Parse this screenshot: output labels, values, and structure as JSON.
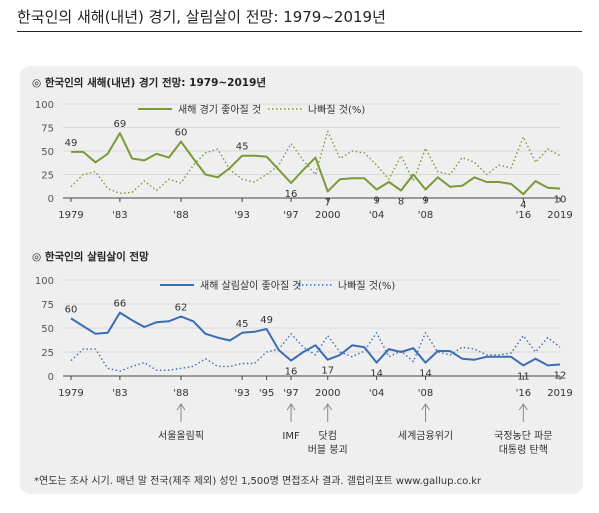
{
  "page_title": "한국인의 새해(내년) 경기, 살림살이 전망: 1979~2019년",
  "footnote": "*연도는 조사 시기. 매년 말 전국(제주 제외) 성인 1,500명 면접조사 결과. 갤럽리포트 www.gallup.co.kr",
  "colors": {
    "good_econ": "#7a9a3a",
    "bad_econ": "#7a9a3a",
    "good_life": "#3b6db5",
    "bad_life": "#3b6db5",
    "panel_bg": "#efefef"
  },
  "chart_data": [
    {
      "type": "line",
      "title": "◎  한국인의 새해(내년) 경기 전망: 1979~2019년",
      "ylim": [
        0,
        100
      ],
      "yticks": [
        "0",
        "25",
        "50",
        "75",
        "100"
      ],
      "xlim": [
        1979,
        2019
      ],
      "xticks": [
        {
          "year": 1979,
          "label": "1979"
        },
        {
          "year": 1983,
          "label": "'83"
        },
        {
          "year": 1988,
          "label": "'88"
        },
        {
          "year": 1993,
          "label": "'93"
        },
        {
          "year": 1997,
          "label": "'97"
        },
        {
          "year": 2000,
          "label": "2000"
        },
        {
          "year": 2004,
          "label": "'04"
        },
        {
          "year": 2008,
          "label": "'08"
        },
        {
          "year": 2016,
          "label": "'16"
        },
        {
          "year": 2019,
          "label": "2019"
        }
      ],
      "series": [
        {
          "name": "새해 경기 좋아질 것",
          "style": "solid",
          "x": [
            1979,
            1980,
            1981,
            1982,
            1983,
            1984,
            1985,
            1986,
            1987,
            1988,
            1989,
            1990,
            1991,
            1992,
            1993,
            1994,
            1995,
            1996,
            1997,
            1998,
            1999,
            2000,
            2001,
            2002,
            2003,
            2004,
            2005,
            2006,
            2007,
            2008,
            2009,
            2010,
            2011,
            2012,
            2013,
            2014,
            2015,
            2016,
            2017,
            2018,
            2019
          ],
          "y": [
            49,
            49,
            38,
            47,
            69,
            42,
            40,
            47,
            43,
            60,
            42,
            25,
            22,
            32,
            45,
            45,
            44,
            30,
            16,
            30,
            43,
            7,
            20,
            21,
            21,
            9,
            17,
            8,
            25,
            9,
            22,
            12,
            13,
            22,
            17,
            17,
            15,
            4,
            18,
            11,
            10
          ]
        },
        {
          "name": "나빠질 것(%)",
          "style": "dotted",
          "x": [
            1979,
            1980,
            1981,
            1982,
            1983,
            1984,
            1985,
            1986,
            1987,
            1988,
            1989,
            1990,
            1991,
            1992,
            1993,
            1994,
            1995,
            1996,
            1997,
            1998,
            1999,
            2000,
            2001,
            2002,
            2003,
            2004,
            2005,
            2006,
            2007,
            2008,
            2009,
            2010,
            2011,
            2012,
            2013,
            2014,
            2015,
            2016,
            2017,
            2018,
            2019
          ],
          "y": [
            12,
            25,
            28,
            10,
            5,
            6,
            18,
            8,
            20,
            16,
            35,
            48,
            52,
            30,
            20,
            17,
            25,
            35,
            58,
            40,
            25,
            71,
            42,
            50,
            48,
            35,
            20,
            45,
            18,
            53,
            28,
            25,
            43,
            38,
            25,
            35,
            32,
            65,
            38,
            52,
            45
          ]
        }
      ],
      "data_labels": [
        {
          "x": 1979,
          "y": 49,
          "text": "49"
        },
        {
          "x": 1983,
          "y": 69,
          "text": "69"
        },
        {
          "x": 1988,
          "y": 60,
          "text": "60"
        },
        {
          "x": 1993,
          "y": 45,
          "text": "45"
        },
        {
          "x": 1997,
          "y": 16,
          "text": "16"
        },
        {
          "x": 2000,
          "y": 7,
          "text": "7"
        },
        {
          "x": 2004,
          "y": 9,
          "text": "9"
        },
        {
          "x": 2006,
          "y": 8,
          "text": "8"
        },
        {
          "x": 2008,
          "y": 9,
          "text": "9"
        },
        {
          "x": 2016,
          "y": 4,
          "text": "4"
        },
        {
          "x": 2019,
          "y": 10,
          "text": "10"
        }
      ],
      "legend": "top"
    },
    {
      "type": "line",
      "title": "◎  한국인의 살림살이 전망",
      "ylim": [
        0,
        100
      ],
      "yticks": [
        "0",
        "25",
        "50",
        "75",
        "100"
      ],
      "xlim": [
        1979,
        2019
      ],
      "xticks": [
        {
          "year": 1979,
          "label": "1979"
        },
        {
          "year": 1983,
          "label": "'83"
        },
        {
          "year": 1988,
          "label": "'88"
        },
        {
          "year": 1993,
          "label": "'93"
        },
        {
          "year": 1995,
          "label": "'95"
        },
        {
          "year": 1997,
          "label": "'97"
        },
        {
          "year": 2000,
          "label": "2000"
        },
        {
          "year": 2004,
          "label": "'04"
        },
        {
          "year": 2008,
          "label": "'08"
        },
        {
          "year": 2016,
          "label": "'16"
        },
        {
          "year": 2019,
          "label": "2019"
        }
      ],
      "series": [
        {
          "name": "새해 살림살이 좋아질 것",
          "style": "solid",
          "x": [
            1979,
            1980,
            1981,
            1982,
            1983,
            1984,
            1985,
            1986,
            1987,
            1988,
            1989,
            1990,
            1991,
            1992,
            1993,
            1994,
            1995,
            1996,
            1997,
            1998,
            1999,
            2000,
            2001,
            2002,
            2003,
            2004,
            2005,
            2006,
            2007,
            2008,
            2009,
            2010,
            2011,
            2012,
            2013,
            2014,
            2015,
            2016,
            2017,
            2018,
            2019
          ],
          "y": [
            60,
            52,
            44,
            45,
            66,
            58,
            51,
            56,
            57,
            62,
            57,
            44,
            40,
            37,
            45,
            46,
            49,
            27,
            16,
            25,
            32,
            17,
            22,
            32,
            30,
            14,
            28,
            25,
            29,
            14,
            26,
            26,
            18,
            17,
            20,
            20,
            20,
            11,
            18,
            11,
            12
          ]
        },
        {
          "name": "나빠질 것(%)",
          "style": "dotted",
          "x": [
            1979,
            1980,
            1981,
            1982,
            1983,
            1984,
            1985,
            1986,
            1987,
            1988,
            1989,
            1990,
            1991,
            1992,
            1993,
            1994,
            1995,
            1996,
            1997,
            1998,
            1999,
            2000,
            2001,
            2002,
            2003,
            2004,
            2005,
            2006,
            2007,
            2008,
            2009,
            2010,
            2011,
            2012,
            2013,
            2014,
            2015,
            2016,
            2017,
            2018,
            2019
          ],
          "y": [
            16,
            28,
            28,
            8,
            5,
            10,
            14,
            6,
            6,
            8,
            10,
            18,
            10,
            10,
            13,
            13,
            25,
            28,
            44,
            30,
            22,
            42,
            25,
            20,
            26,
            45,
            20,
            26,
            15,
            45,
            25,
            22,
            30,
            28,
            22,
            22,
            24,
            42,
            25,
            40,
            30
          ]
        }
      ],
      "data_labels": [
        {
          "x": 1979,
          "y": 60,
          "text": "60"
        },
        {
          "x": 1983,
          "y": 66,
          "text": "66"
        },
        {
          "x": 1988,
          "y": 62,
          "text": "62"
        },
        {
          "x": 1993,
          "y": 45,
          "text": "45"
        },
        {
          "x": 1995,
          "y": 49,
          "text": "49"
        },
        {
          "x": 1997,
          "y": 16,
          "text": "16"
        },
        {
          "x": 2000,
          "y": 17,
          "text": "17"
        },
        {
          "x": 2004,
          "y": 14,
          "text": "14"
        },
        {
          "x": 2008,
          "y": 14,
          "text": "14"
        },
        {
          "x": 2016,
          "y": 11,
          "text": "11"
        },
        {
          "x": 2019,
          "y": 12,
          "text": "12"
        }
      ],
      "events": [
        {
          "year": 1988,
          "lines": [
            "서울올림픽"
          ]
        },
        {
          "year": 1997,
          "lines": [
            "IMF"
          ]
        },
        {
          "year": 2000,
          "lines": [
            "닷컴",
            "버블 붕괴"
          ]
        },
        {
          "year": 2008,
          "lines": [
            "세계금융위기"
          ]
        },
        {
          "year": 2016,
          "lines": [
            "국정농단 파문",
            "대통령 탄핵"
          ]
        }
      ],
      "legend": "top"
    }
  ]
}
